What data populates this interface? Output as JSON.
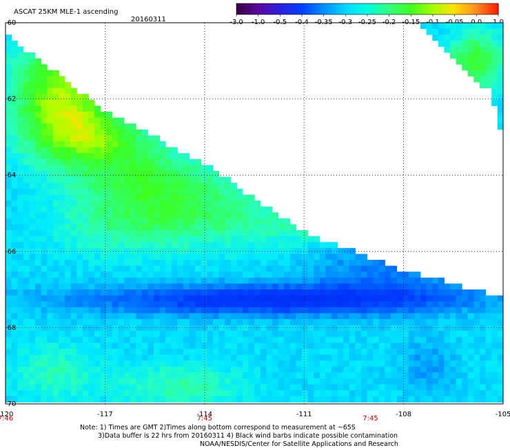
{
  "header": {
    "title": "ASCAT 25KM MLE-1 ascending",
    "date": "20160311"
  },
  "colorbar": {
    "tick_labels": [
      "-3.0",
      "-1.0",
      "-0.5",
      "-0.4",
      "-0.35",
      "-0.3",
      "-0.25",
      "-0.2",
      "-0.15",
      "-0.1",
      "-0.05",
      "0.0",
      "1.0"
    ],
    "colors": [
      "#3a0048",
      "#5a0aa0",
      "#2a20e0",
      "#0040ff",
      "#0090ff",
      "#00d8ff",
      "#00ffe0",
      "#30ff80",
      "#40ff20",
      "#a0ff00",
      "#ffe000",
      "#ff9020",
      "#ff2000"
    ]
  },
  "chart_data": {
    "type": "heatmap",
    "title": "ASCAT 25KM MLE-1 ascending",
    "xlim": [
      -120,
      -105
    ],
    "ylim": [
      -70,
      -60
    ],
    "x_ticks": [
      "-120",
      "-117",
      "-114",
      "-111",
      "-108",
      "-105"
    ],
    "y_ticks": [
      "-60",
      "-62",
      "-64",
      "-66",
      "-68",
      "-70"
    ],
    "grid": true,
    "times_along_bottom": [
      {
        "lon": -120,
        "label": "7:46"
      },
      {
        "lon": -114,
        "label": "7:45"
      },
      {
        "lon": -109,
        "label": "7:45"
      }
    ],
    "swath_main_polygon_lonlat": [
      [
        -120,
        -60.3
      ],
      [
        -117,
        -62.3
      ],
      [
        -114,
        -63.7
      ],
      [
        -111,
        -65.5
      ],
      [
        -108,
        -66.5
      ],
      [
        -105,
        -67.2
      ],
      [
        -105,
        -70
      ],
      [
        -120,
        -70
      ]
    ],
    "swath_corner_polygon_lonlat": [
      [
        -107.5,
        -60
      ],
      [
        -105,
        -60
      ],
      [
        -105,
        -63.7
      ],
      [
        -105.1,
        -62.5
      ],
      [
        -105.4,
        -61.8
      ],
      [
        -106.6,
        -60.9
      ]
    ],
    "field_regions": [
      {
        "description": "yellow-orange band near upper-left edge",
        "value_range": "-0.1 to 0.0",
        "lon_range": [
          -119.8,
          -116
        ],
        "lat_range": [
          -61,
          -63.8
        ]
      },
      {
        "description": "green region",
        "value_range": "-0.2 to -0.1",
        "lon_range": [
          -120,
          -112
        ],
        "lat_range": [
          -62,
          -66
        ]
      },
      {
        "description": "blue band",
        "value_range": "-0.4 to -0.35",
        "lon_range": [
          -118.5,
          -106
        ],
        "lat_range": [
          -67.3,
          -68.5
        ]
      },
      {
        "description": "cyan / light green lower area",
        "value_range": "-0.3 to -0.2",
        "lon_range": [
          -120,
          -105
        ],
        "lat_range": [
          -68.5,
          -70
        ]
      }
    ]
  },
  "notes": {
    "line1": "Note: 1) Times are GMT 2)Times along bottom correspond to measurement at ~65S",
    "line2": "3)Data buffer is 22 hrs from 20160311 4) Black wind barbs indicate possible contamination",
    "line3": "NOAA/NESDIS/Center for Satellite Applications and Research"
  }
}
